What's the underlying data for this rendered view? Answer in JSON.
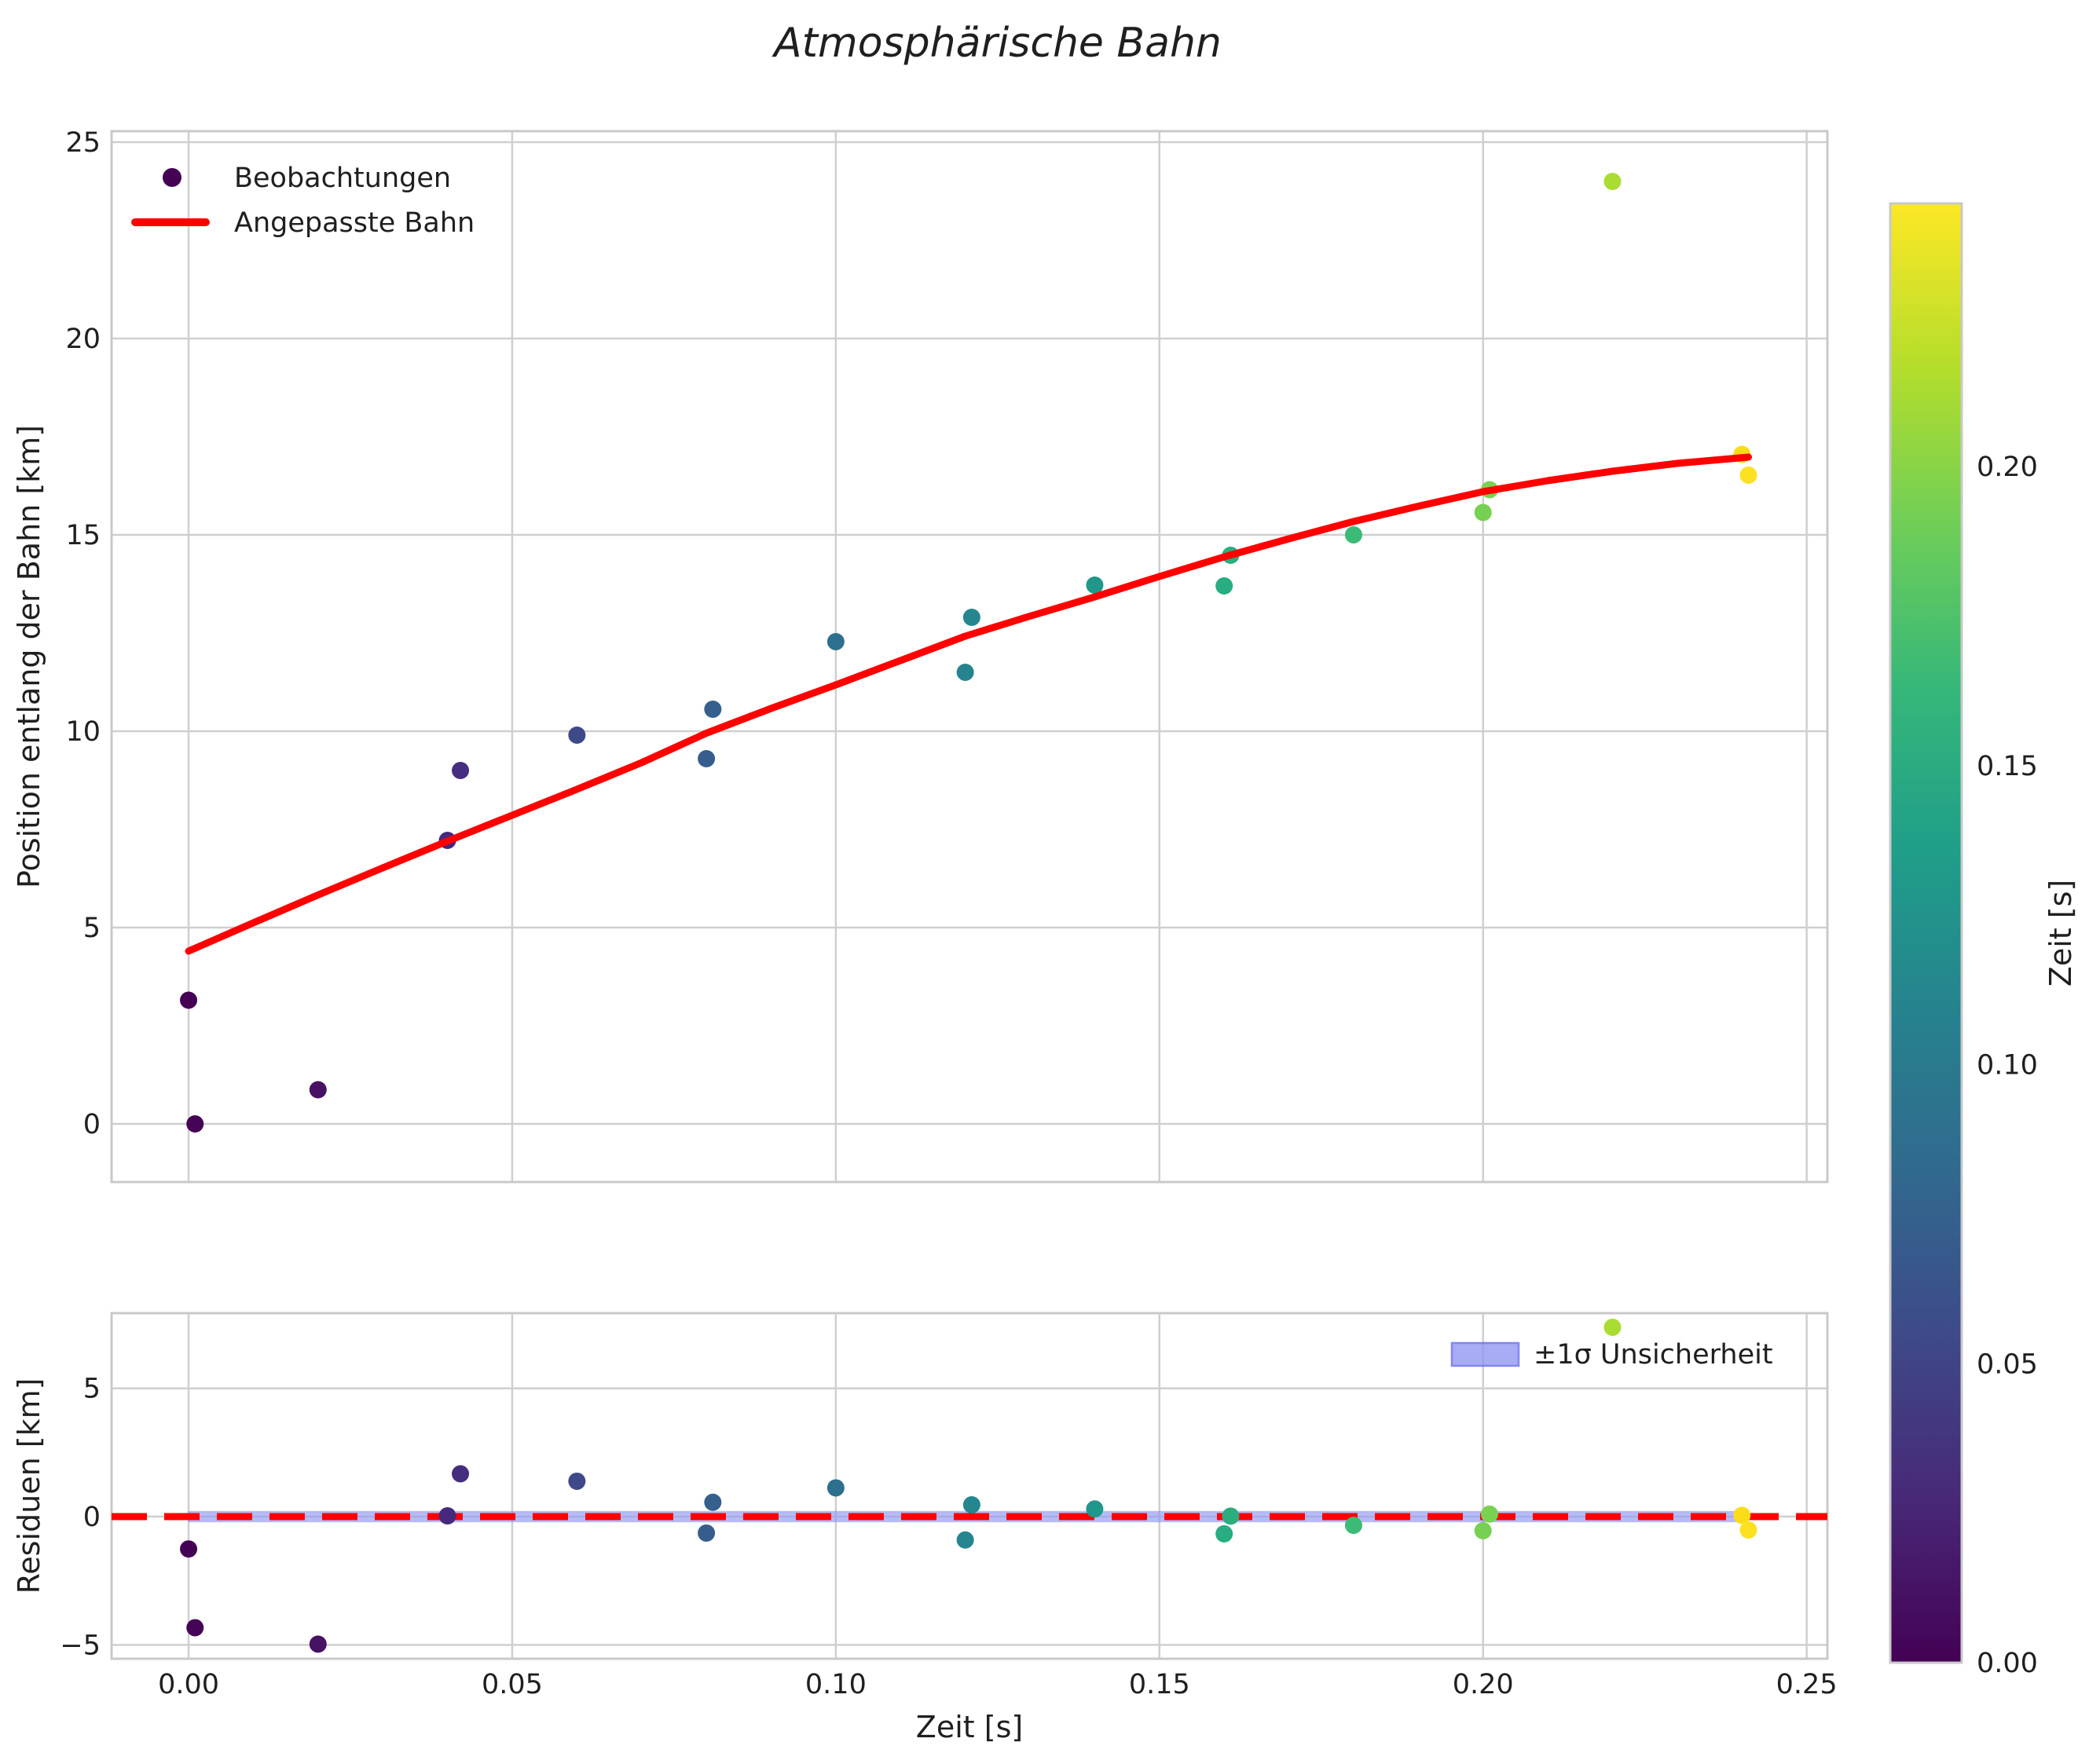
{
  "figure": {
    "title": "Atmosphärische Bahn",
    "background": "#ffffff",
    "text_color": "#1f1f1f",
    "grid_color": "#cfcfcf",
    "spine_color": "#c9c9c9",
    "accent_red": "#ff0000"
  },
  "chart_data": [
    {
      "type": "scatter",
      "panel": "trajectory",
      "title": "Atmosphärische Bahn",
      "xlabel": "",
      "ylabel": "Position entlang der Bahn [km]",
      "xlim": [
        -0.0119,
        0.2532
      ],
      "ylim": [
        -1.48,
        25.28
      ],
      "xticks": [
        0.0,
        0.05,
        0.1,
        0.15,
        0.2,
        0.25
      ],
      "xtick_labels": [
        "0.00",
        "0.05",
        "0.10",
        "0.15",
        "0.20",
        "0.25"
      ],
      "yticks": [
        0,
        5,
        10,
        15,
        20,
        25
      ],
      "ytick_labels": [
        "0",
        "5",
        "10",
        "15",
        "20",
        "25"
      ],
      "grid": true,
      "legend_position": "upper-left",
      "legend": [
        {
          "label": "Beobachtungen",
          "marker": "dot",
          "color": "#440154"
        },
        {
          "label": "Angepasste Bahn",
          "marker": "line",
          "color": "#ff0000"
        }
      ],
      "series": [
        {
          "name": "Beobachtungen",
          "marker_radius": 11,
          "points": [
            {
              "t": 0.0,
              "y": 3.15,
              "color": "#440154"
            },
            {
              "t": 0.001,
              "y": 0.0,
              "color": "#450457"
            },
            {
              "t": 0.02,
              "y": 0.87,
              "color": "#471164"
            },
            {
              "t": 0.04,
              "y": 7.22,
              "color": "#46297d"
            },
            {
              "t": 0.042,
              "y": 9.0,
              "color": "#452e7f"
            },
            {
              "t": 0.06,
              "y": 9.9,
              "color": "#3e4989"
            },
            {
              "t": 0.08,
              "y": 9.3,
              "color": "#365d8d"
            },
            {
              "t": 0.081,
              "y": 10.56,
              "color": "#355f8d"
            },
            {
              "t": 0.1,
              "y": 12.28,
              "color": "#2d708e"
            },
            {
              "t": 0.12,
              "y": 11.5,
              "color": "#25848e"
            },
            {
              "t": 0.121,
              "y": 12.9,
              "color": "#24868e"
            },
            {
              "t": 0.14,
              "y": 13.72,
              "color": "#1f988b"
            },
            {
              "t": 0.16,
              "y": 13.7,
              "color": "#27ad81"
            },
            {
              "t": 0.161,
              "y": 14.48,
              "color": "#2aae80"
            },
            {
              "t": 0.18,
              "y": 15.0,
              "color": "#3bbb75"
            },
            {
              "t": 0.2,
              "y": 15.57,
              "color": "#76d153"
            },
            {
              "t": 0.201,
              "y": 16.15,
              "color": "#7ad151"
            },
            {
              "t": 0.22,
              "y": 24.0,
              "color": "#aadc32"
            },
            {
              "t": 0.24,
              "y": 17.05,
              "color": "#fbdc19"
            },
            {
              "t": 0.241,
              "y": 16.52,
              "color": "#fce022"
            }
          ]
        },
        {
          "name": "Angepasste Bahn",
          "type": "line",
          "color": "#ff0000",
          "width": 9,
          "t": [
            0.0,
            0.01,
            0.02,
            0.03,
            0.04,
            0.05,
            0.06,
            0.07,
            0.08,
            0.09,
            0.1,
            0.11,
            0.12,
            0.13,
            0.14,
            0.15,
            0.16,
            0.17,
            0.18,
            0.19,
            0.2,
            0.21,
            0.22,
            0.23,
            0.241
          ],
          "y": [
            4.4,
            5.12,
            5.83,
            6.52,
            7.2,
            7.86,
            8.52,
            9.2,
            9.95,
            10.58,
            11.18,
            11.8,
            12.42,
            12.93,
            13.42,
            13.94,
            14.44,
            14.9,
            15.34,
            15.73,
            16.1,
            16.38,
            16.62,
            16.82,
            16.98
          ]
        }
      ]
    },
    {
      "type": "scatter",
      "panel": "residuals",
      "xlabel": "Zeit [s]",
      "ylabel": "Residuen [km]",
      "xlim": [
        -0.0119,
        0.2532
      ],
      "ylim": [
        -5.54,
        7.93
      ],
      "yticks": [
        -5,
        0,
        5
      ],
      "ytick_labels": [
        "−5",
        "0",
        "5"
      ],
      "grid": true,
      "zero_line": {
        "color": "#ff0000",
        "style": "dashed",
        "width": 9,
        "dash": "45 22"
      },
      "band": {
        "label": "±1σ Unsicherheit",
        "sigma": 0.2,
        "t_range": [
          0.0,
          0.2405
        ],
        "fill": "#9298f2",
        "edge": "#6468ee"
      },
      "legend_position": "upper-right",
      "points": [
        {
          "t": 0.0,
          "r": -1.26,
          "color": "#440154"
        },
        {
          "t": 0.001,
          "r": -4.33,
          "color": "#450457"
        },
        {
          "t": 0.02,
          "r": -4.97,
          "color": "#471164"
        },
        {
          "t": 0.04,
          "r": 0.03,
          "color": "#46297d"
        },
        {
          "t": 0.042,
          "r": 1.67,
          "color": "#452e7f"
        },
        {
          "t": 0.06,
          "r": 1.38,
          "color": "#3e4989"
        },
        {
          "t": 0.08,
          "r": -0.64,
          "color": "#365d8d"
        },
        {
          "t": 0.081,
          "r": 0.56,
          "color": "#355f8d"
        },
        {
          "t": 0.1,
          "r": 1.12,
          "color": "#2d708e"
        },
        {
          "t": 0.12,
          "r": -0.91,
          "color": "#25848e"
        },
        {
          "t": 0.121,
          "r": 0.46,
          "color": "#24868e"
        },
        {
          "t": 0.14,
          "r": 0.3,
          "color": "#1f988b"
        },
        {
          "t": 0.16,
          "r": -0.67,
          "color": "#27ad81"
        },
        {
          "t": 0.161,
          "r": 0.02,
          "color": "#2aae80"
        },
        {
          "t": 0.18,
          "r": -0.34,
          "color": "#3bbb75"
        },
        {
          "t": 0.2,
          "r": -0.55,
          "color": "#76d153"
        },
        {
          "t": 0.201,
          "r": 0.1,
          "color": "#7ad151"
        },
        {
          "t": 0.22,
          "r": 7.38,
          "color": "#aadc32"
        },
        {
          "t": 0.24,
          "r": 0.05,
          "color": "#fbdc19"
        },
        {
          "t": 0.241,
          "r": -0.52,
          "color": "#fce022"
        }
      ]
    }
  ],
  "colorbar": {
    "label": "Zeit [s]",
    "vmin": 0.0,
    "vmax": 0.244,
    "ticks": [
      0.0,
      0.05,
      0.1,
      0.15,
      0.2
    ],
    "tick_labels": [
      "0.00",
      "0.05",
      "0.10",
      "0.15",
      "0.20"
    ],
    "colormap": "viridis",
    "gradient": [
      [
        0.0,
        "#440154"
      ],
      [
        0.111,
        "#482878"
      ],
      [
        0.222,
        "#3e4989"
      ],
      [
        0.333,
        "#31688e"
      ],
      [
        0.444,
        "#26828e"
      ],
      [
        0.556,
        "#1f9e89"
      ],
      [
        0.667,
        "#35b779"
      ],
      [
        0.778,
        "#6ece58"
      ],
      [
        0.889,
        "#b5de2b"
      ],
      [
        1.0,
        "#fde725"
      ]
    ]
  }
}
